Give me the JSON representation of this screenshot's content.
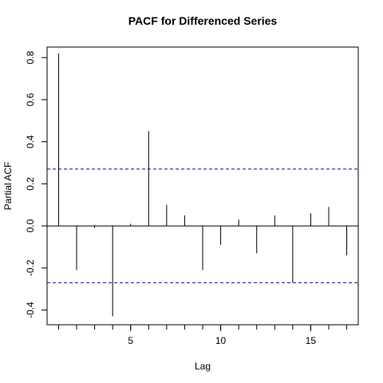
{
  "chart_data": {
    "type": "bar",
    "title": "PACF for Differenced Series",
    "xlabel": "Lag",
    "ylabel": "Partial ACF",
    "xlim": [
      0.36,
      17.64
    ],
    "ylim": [
      -0.47,
      0.85
    ],
    "x_ticks": [
      5,
      10,
      15
    ],
    "y_ticks": [
      -0.4,
      -0.2,
      0.0,
      0.2,
      0.4,
      0.6,
      0.8
    ],
    "y_tick_labels": [
      "-0.4",
      "-0.2",
      "0.0",
      "0.2",
      "0.4",
      "0.6",
      "0.8"
    ],
    "confidence_bound": 0.27,
    "lags": [
      1,
      2,
      3,
      4,
      5,
      6,
      7,
      8,
      9,
      10,
      11,
      12,
      13,
      14,
      15,
      16,
      17
    ],
    "values": [
      0.82,
      -0.21,
      -0.01,
      -0.43,
      0.01,
      0.45,
      0.1,
      0.05,
      -0.21,
      -0.09,
      0.03,
      -0.13,
      0.05,
      -0.27,
      0.06,
      0.09,
      -0.14
    ],
    "colors": {
      "bars": "#000000",
      "bounds": "#0000cc",
      "zero_line": "#000000"
    }
  }
}
